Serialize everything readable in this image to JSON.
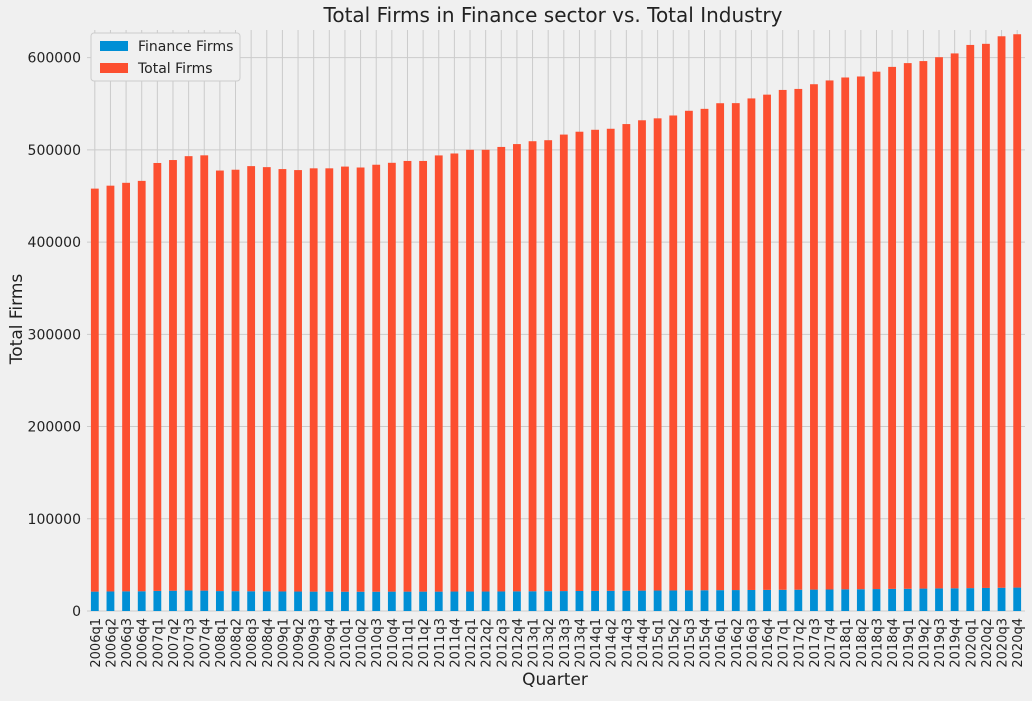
{
  "chart_data": {
    "type": "bar",
    "stacked": true,
    "title": "Total Firms in Finance sector vs. Total Industry",
    "xlabel": "Quarter",
    "ylabel": "Total Firms",
    "ylim": [
      0,
      630000
    ],
    "yticks": [
      0,
      100000,
      200000,
      300000,
      400000,
      500000,
      600000
    ],
    "grid": true,
    "legend": "top-left",
    "categories": [
      "2006q1",
      "2006q2",
      "2006q3",
      "2006q4",
      "2007q1",
      "2007q2",
      "2007q3",
      "2007q4",
      "2008q1",
      "2008q2",
      "2008q3",
      "2008q4",
      "2009q1",
      "2009q2",
      "2009q3",
      "2009q4",
      "2010q1",
      "2010q2",
      "2010q3",
      "2010q4",
      "2011q1",
      "2011q2",
      "2011q3",
      "2011q4",
      "2012q1",
      "2012q2",
      "2012q3",
      "2012q4",
      "2013q1",
      "2013q2",
      "2013q3",
      "2013q4",
      "2014q1",
      "2014q2",
      "2014q3",
      "2014q4",
      "2015q1",
      "2015q2",
      "2015q3",
      "2015q4",
      "2016q1",
      "2016q2",
      "2016q3",
      "2016q4",
      "2017q1",
      "2017q2",
      "2017q3",
      "2017q4",
      "2018q1",
      "2018q2",
      "2018q3",
      "2018q4",
      "2019q1",
      "2019q2",
      "2019q3",
      "2019q4",
      "2020q1",
      "2020q2",
      "2020q3",
      "2020q4"
    ],
    "series": [
      {
        "name": "Finance Firms",
        "color": "#008fd5",
        "values": [
          21000,
          21200,
          21300,
          21400,
          21800,
          22000,
          22200,
          22100,
          21600,
          21500,
          21400,
          21300,
          21200,
          21100,
          21000,
          21000,
          20900,
          20900,
          20900,
          21000,
          21000,
          21000,
          21000,
          21100,
          21100,
          21100,
          21200,
          21300,
          21400,
          21500,
          21600,
          21700,
          21800,
          21900,
          22000,
          22100,
          22200,
          22300,
          22400,
          22500,
          22600,
          22700,
          22800,
          22900,
          23000,
          23100,
          23200,
          23300,
          23500,
          23600,
          23800,
          24000,
          24100,
          24300,
          24500,
          24600,
          24800,
          25000,
          25200,
          25400
        ]
      },
      {
        "name": "Total Firms",
        "color": "#fc4f30",
        "values": [
          437000,
          440000,
          443000,
          445000,
          464000,
          467000,
          471000,
          472000,
          456000,
          457000,
          461000,
          460000,
          458000,
          457000,
          459000,
          459000,
          461000,
          460000,
          463000,
          465000,
          467000,
          467000,
          473000,
          475000,
          479000,
          479000,
          482000,
          485000,
          488000,
          489000,
          495000,
          498000,
          500000,
          501000,
          506000,
          510000,
          512000,
          515000,
          520000,
          522000,
          528000,
          528000,
          533000,
          537000,
          542000,
          543000,
          548000,
          552000,
          555000,
          556000,
          561000,
          566000,
          570000,
          572000,
          576000,
          580000,
          589000,
          590000,
          598000,
          600000
        ]
      }
    ]
  }
}
